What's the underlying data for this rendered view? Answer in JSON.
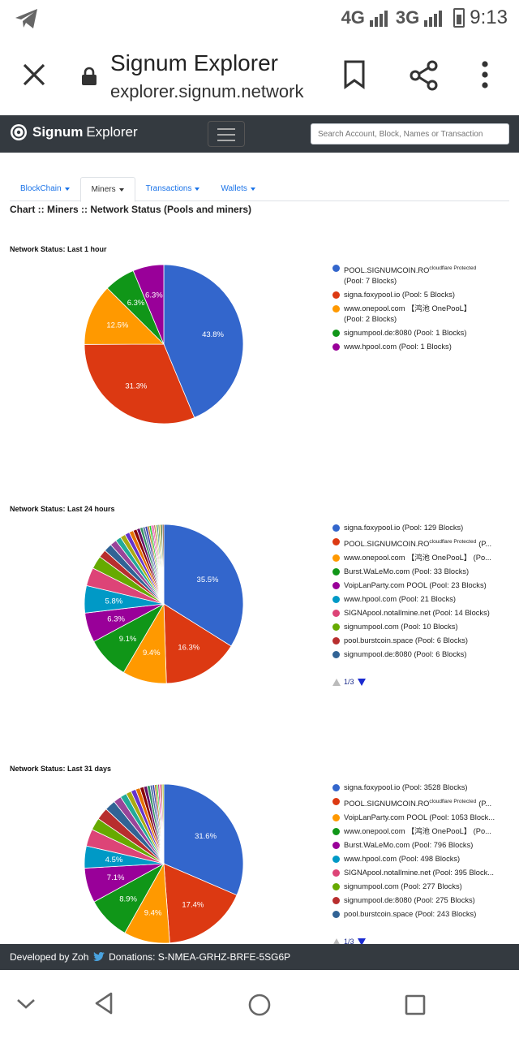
{
  "status_bar": {
    "time": "9:13",
    "net1": "4G",
    "net2": "3G"
  },
  "custom_tab": {
    "title": "Signum Explorer",
    "url": "explorer.signum.network"
  },
  "navbar": {
    "brand_bold": "Signum",
    "brand_light": "Explorer",
    "search_placeholder": "Search Account, Block, Names or Transaction"
  },
  "tabs": [
    {
      "label": "BlockChain",
      "active": false
    },
    {
      "label": "Miners",
      "active": true
    },
    {
      "label": "Transactions",
      "active": false
    },
    {
      "label": "Wallets",
      "active": false
    }
  ],
  "breadcrumb": "Chart :: Miners :: Network Status (Pools and miners)",
  "chart_data": [
    {
      "type": "pie",
      "title": "Network Status: Last 1 hour",
      "legend": [
        {
          "name": "POOL.SIGNUMCOIN.RO",
          "sup": "cloudflare Protected",
          "detail": "(Pool: 7 Blocks)",
          "color": "#3366cc"
        },
        {
          "name": "signa.foxypool.io (Pool: 5 Blocks)",
          "color": "#dc3912"
        },
        {
          "name": "www.onepool.com 【鸿池 OnePooL】",
          "detail": "(Pool: 2 Blocks)",
          "color": "#ff9900"
        },
        {
          "name": "signumpool.de:8080 (Pool: 1 Blocks)",
          "color": "#109618"
        },
        {
          "name": "www.hpool.com (Pool: 1 Blocks)",
          "color": "#990099"
        }
      ],
      "slices": [
        {
          "value": 43.8,
          "label": "43.8%",
          "color": "#3366cc"
        },
        {
          "value": 31.3,
          "label": "31.3%",
          "color": "#dc3912"
        },
        {
          "value": 12.5,
          "label": "12.5%",
          "color": "#ff9900"
        },
        {
          "value": 6.3,
          "label": "6.3%",
          "color": "#109618"
        },
        {
          "value": 6.3,
          "label": "6.3%",
          "color": "#990099"
        }
      ]
    },
    {
      "type": "pie",
      "title": "Network Status: Last 24 hours",
      "pager": "1/3",
      "legend": [
        {
          "name": "signa.foxypool.io (Pool: 129 Blocks)",
          "color": "#3366cc"
        },
        {
          "name": "POOL.SIGNUMCOIN.RO",
          "sup": "cloudflare Protected",
          "tail": "(P...",
          "color": "#dc3912"
        },
        {
          "name": "www.onepool.com 【鸿池 OnePooL】 (Po...",
          "color": "#ff9900"
        },
        {
          "name": "Burst.WaLeMo.com (Pool: 33 Blocks)",
          "color": "#109618"
        },
        {
          "name": "VoipLanParty.com POOL (Pool: 23 Blocks)",
          "color": "#990099"
        },
        {
          "name": "www.hpool.com (Pool: 21 Blocks)",
          "color": "#0099c6"
        },
        {
          "name": "SIGNApool.notallmine.net (Pool: 14 Blocks)",
          "color": "#dd4477"
        },
        {
          "name": "signumpool.com (Pool: 10 Blocks)",
          "color": "#66aa00"
        },
        {
          "name": "pool.burstcoin.space (Pool: 6 Blocks)",
          "color": "#b82e2e"
        },
        {
          "name": "signumpool.de:8080 (Pool: 6 Blocks)",
          "color": "#316395"
        }
      ],
      "slices": [
        {
          "value": 35.5,
          "label": "35.5%",
          "color": "#3366cc"
        },
        {
          "value": 16.3,
          "label": "16.3%",
          "color": "#dc3912"
        },
        {
          "value": 9.4,
          "label": "9.4%",
          "color": "#ff9900"
        },
        {
          "value": 9.1,
          "label": "9.1%",
          "color": "#109618"
        },
        {
          "value": 6.3,
          "label": "6.3%",
          "color": "#990099"
        },
        {
          "value": 5.8,
          "label": "5.8%",
          "color": "#0099c6"
        },
        {
          "value": 3.9,
          "label": "",
          "color": "#dd4477"
        },
        {
          "value": 2.8,
          "label": "",
          "color": "#66aa00"
        },
        {
          "value": 1.7,
          "label": "",
          "color": "#b82e2e"
        },
        {
          "value": 1.7,
          "label": "",
          "color": "#316395"
        },
        {
          "value": 1.4,
          "label": "",
          "color": "#994499"
        },
        {
          "value": 1.2,
          "label": "",
          "color": "#22aa99"
        },
        {
          "value": 1.1,
          "label": "",
          "color": "#aaaa11"
        },
        {
          "value": 1.0,
          "label": "",
          "color": "#6633cc"
        },
        {
          "value": 0.9,
          "label": "",
          "color": "#e67300"
        },
        {
          "value": 0.8,
          "label": "",
          "color": "#8b0707"
        },
        {
          "value": 0.7,
          "label": "",
          "color": "#651067"
        },
        {
          "value": 0.6,
          "label": "",
          "color": "#329262"
        },
        {
          "value": 0.5,
          "label": "",
          "color": "#5574a6"
        },
        {
          "value": 0.5,
          "label": "",
          "color": "#3b3eac"
        },
        {
          "value": 0.4,
          "label": "",
          "color": "#b77322"
        },
        {
          "value": 0.4,
          "label": "",
          "color": "#16d620"
        },
        {
          "value": 0.3,
          "label": "",
          "color": "#b91383"
        },
        {
          "value": 0.3,
          "label": "",
          "color": "#f4359e"
        },
        {
          "value": 0.3,
          "label": "",
          "color": "#9c5935"
        },
        {
          "value": 0.3,
          "label": "",
          "color": "#a9c413"
        },
        {
          "value": 0.3,
          "label": "",
          "color": "#2a778d"
        },
        {
          "value": 0.3,
          "label": "",
          "color": "#668d1c"
        },
        {
          "value": 0.3,
          "label": "",
          "color": "#bea413"
        },
        {
          "value": 0.3,
          "label": "",
          "color": "#0c5922"
        },
        {
          "value": 0.3,
          "label": "",
          "color": "#743411"
        }
      ]
    },
    {
      "type": "pie",
      "title": "Network Status: Last 31 days",
      "pager": "1/3",
      "legend": [
        {
          "name": "signa.foxypool.io (Pool: 3528 Blocks)",
          "color": "#3366cc"
        },
        {
          "name": "POOL.SIGNUMCOIN.RO",
          "sup": "cloudflare Protected",
          "tail": "(P...",
          "color": "#dc3912"
        },
        {
          "name": "VoipLanParty.com POOL (Pool: 1053 Block...",
          "color": "#ff9900"
        },
        {
          "name": "www.onepool.com 【鸿池 OnePooL】 (Po...",
          "color": "#109618"
        },
        {
          "name": "Burst.WaLeMo.com (Pool: 796 Blocks)",
          "color": "#990099"
        },
        {
          "name": "www.hpool.com (Pool: 498 Blocks)",
          "color": "#0099c6"
        },
        {
          "name": "SIGNApool.notallmine.net (Pool: 395 Block...",
          "color": "#dd4477"
        },
        {
          "name": "signumpool.com (Pool: 277 Blocks)",
          "color": "#66aa00"
        },
        {
          "name": "signumpool.de:8080 (Pool: 275 Blocks)",
          "color": "#b82e2e"
        },
        {
          "name": "pool.burstcoin.space (Pool: 243 Blocks)",
          "color": "#316395"
        }
      ],
      "slices": [
        {
          "value": 31.6,
          "label": "31.6%",
          "color": "#3366cc"
        },
        {
          "value": 17.4,
          "label": "17.4%",
          "color": "#dc3912"
        },
        {
          "value": 9.4,
          "label": "9.4%",
          "color": "#ff9900"
        },
        {
          "value": 8.9,
          "label": "8.9%",
          "color": "#109618"
        },
        {
          "value": 7.1,
          "label": "7.1%",
          "color": "#990099"
        },
        {
          "value": 4.5,
          "label": "4.5%",
          "color": "#0099c6"
        },
        {
          "value": 3.5,
          "label": "",
          "color": "#dd4477"
        },
        {
          "value": 2.5,
          "label": "",
          "color": "#66aa00"
        },
        {
          "value": 2.5,
          "label": "",
          "color": "#b82e2e"
        },
        {
          "value": 2.2,
          "label": "",
          "color": "#316395"
        },
        {
          "value": 1.6,
          "label": "",
          "color": "#994499"
        },
        {
          "value": 1.3,
          "label": "",
          "color": "#22aa99"
        },
        {
          "value": 1.1,
          "label": "",
          "color": "#aaaa11"
        },
        {
          "value": 1.0,
          "label": "",
          "color": "#6633cc"
        },
        {
          "value": 0.9,
          "label": "",
          "color": "#e67300"
        },
        {
          "value": 0.8,
          "label": "",
          "color": "#8b0707"
        },
        {
          "value": 0.7,
          "label": "",
          "color": "#651067"
        },
        {
          "value": 0.6,
          "label": "",
          "color": "#329262"
        },
        {
          "value": 0.5,
          "label": "",
          "color": "#5574a6"
        },
        {
          "value": 0.4,
          "label": "",
          "color": "#3b3eac"
        },
        {
          "value": 0.4,
          "label": "",
          "color": "#b77322"
        },
        {
          "value": 0.3,
          "label": "",
          "color": "#16d620"
        },
        {
          "value": 0.3,
          "label": "",
          "color": "#b91383"
        },
        {
          "value": 0.3,
          "label": "",
          "color": "#f4359e"
        },
        {
          "value": 0.3,
          "label": "",
          "color": "#9c5935"
        },
        {
          "value": 0.3,
          "label": "",
          "color": "#a9c413"
        }
      ]
    }
  ],
  "footer": {
    "developer": "Developed by Zoh",
    "donations": "Donations: S-NMEA-GRHZ-BRFE-5SG6P"
  }
}
